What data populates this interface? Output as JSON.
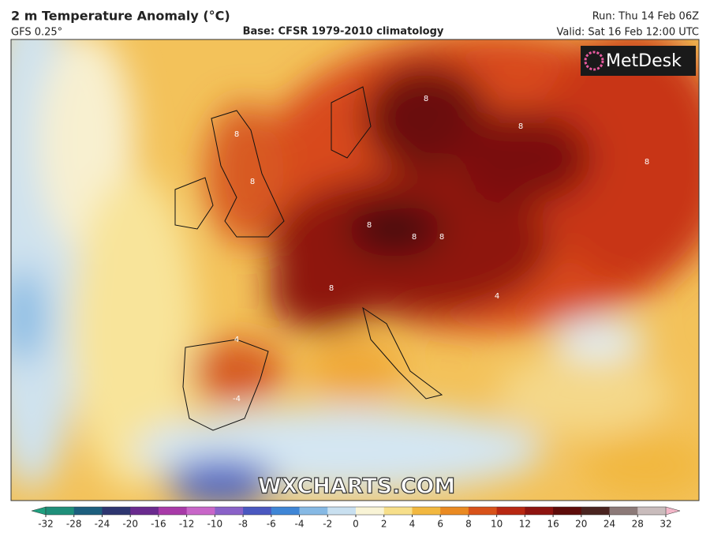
{
  "header": {
    "title": "2 m Temperature Anomaly (°C)",
    "model": "GFS 0.25°",
    "base": "Base: CFSR 1979-2010 climatology",
    "run": "Run: Thu 14 Feb 06Z",
    "valid": "Valid: Sat 16 Feb 12:00 UTC"
  },
  "logo": "MetDesk",
  "watermark": "WXCHARTS.COM",
  "contour_labels": [
    "8",
    "8",
    "8",
    "8",
    "8",
    "8",
    "4",
    "4",
    "8",
    "8",
    "-4",
    "8"
  ],
  "colorbar": {
    "ticks": [
      -32,
      -28,
      -24,
      -20,
      -16,
      -12,
      -10,
      -8,
      -6,
      -4,
      -2,
      0,
      2,
      4,
      6,
      8,
      10,
      12,
      16,
      20,
      24,
      28,
      32
    ],
    "colors": [
      "#1f8f7a",
      "#1d5f7e",
      "#2e3670",
      "#6a2a8e",
      "#a83aa8",
      "#c866c8",
      "#8a62c8",
      "#4a58c0",
      "#3f86d6",
      "#86b9e4",
      "#c9e0f0",
      "#f9f4d6",
      "#f7df8a",
      "#f2b840",
      "#ea8a22",
      "#d8521a",
      "#b82812",
      "#8e1410",
      "#5e0c0a",
      "#4a2420",
      "#8c7a78",
      "#c9bcbc"
    ],
    "low_color": "#20a080",
    "high_color": "#f2b6c8"
  }
}
